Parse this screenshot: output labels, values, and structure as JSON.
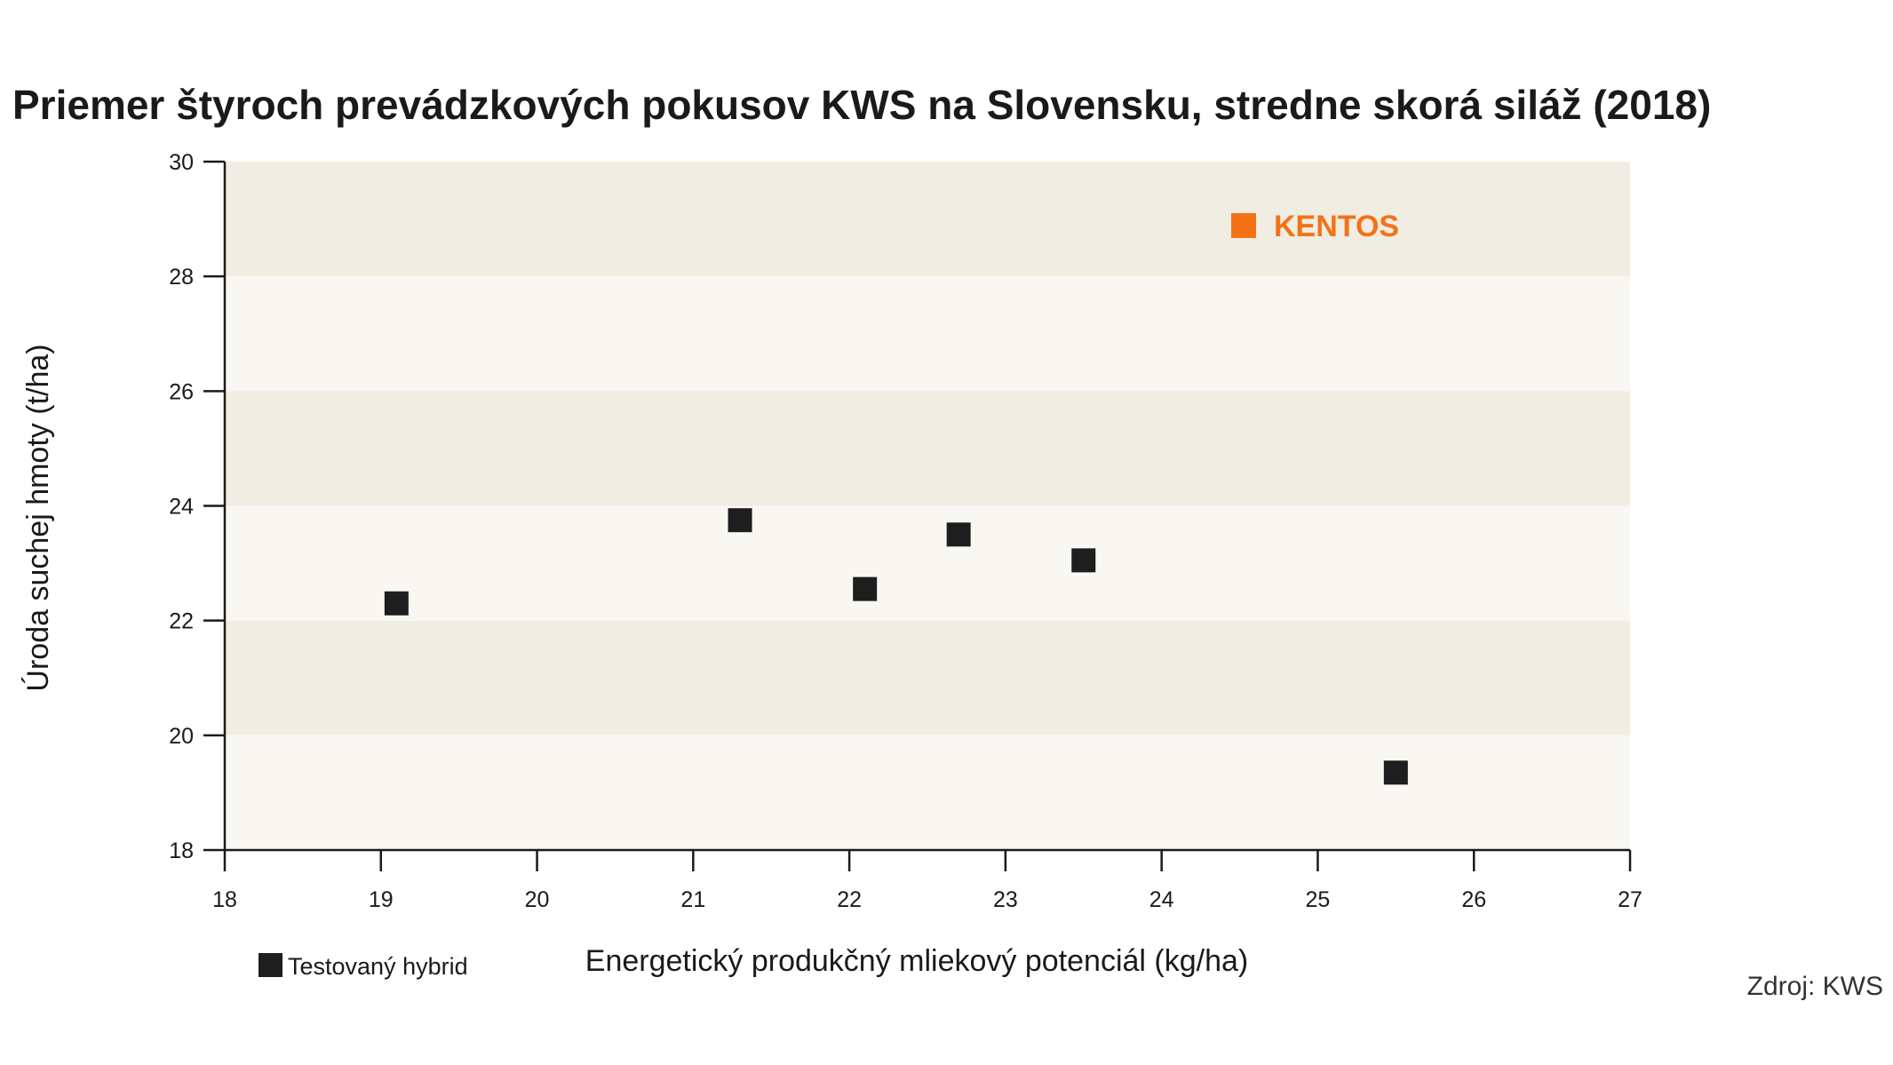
{
  "chart_data": {
    "type": "scatter",
    "title": "Priemer štyroch prevádzkových pokusov KWS na Slovensku, stredne skorá siláž (2018)",
    "xlabel": "Energetický produkčný mliekový potenciál (kg/ha)",
    "ylabel": "Úroda suchej hmoty (t/ha)",
    "xlim": [
      18,
      27
    ],
    "ylim": [
      18,
      30
    ],
    "xticks": [
      "18",
      "19",
      "20",
      "21",
      "22",
      "23",
      "24",
      "25",
      "26",
      "27"
    ],
    "yticks": [
      "18",
      "20",
      "22",
      "24",
      "26",
      "28",
      "30"
    ],
    "grid": "alternating horizontal bands",
    "series": [
      {
        "name": "Testovaný hybrid",
        "color": "#1e1e1e",
        "marker": "square",
        "points": [
          {
            "x": 19.1,
            "y": 22.3
          },
          {
            "x": 21.3,
            "y": 23.75
          },
          {
            "x": 22.1,
            "y": 22.55
          },
          {
            "x": 22.7,
            "y": 23.5
          },
          {
            "x": 23.5,
            "y": 23.05
          },
          {
            "x": 25.5,
            "y": 19.35
          }
        ]
      }
    ],
    "highlight": {
      "label": "KENTOS",
      "color": "#f47216"
    },
    "legend": {
      "position": "bottom-left",
      "label": "Testovaný hybrid"
    },
    "source": "Zdroj: KWS",
    "colors": {
      "band_dark": "#f0ede2",
      "band_light": "#f8f7f2",
      "axis": "#1a1a1a"
    }
  }
}
